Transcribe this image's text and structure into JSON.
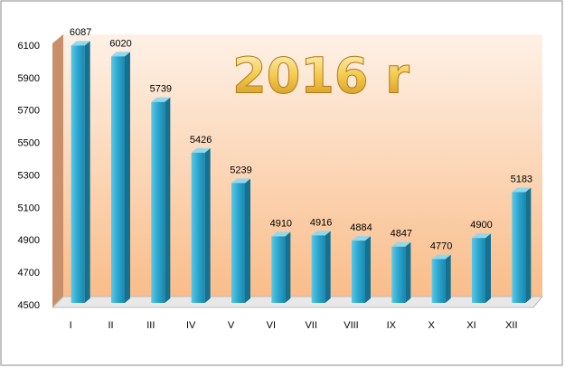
{
  "chart_data": {
    "type": "bar",
    "title": "2016 r",
    "categories": [
      "I",
      "II",
      "III",
      "IV",
      "V",
      "VI",
      "VII",
      "VIII",
      "IX",
      "X",
      "XI",
      "XII"
    ],
    "values": [
      6087,
      6020,
      5739,
      5426,
      5239,
      4910,
      4916,
      4884,
      4847,
      4770,
      4900,
      5183
    ],
    "color": "#2aa6cf",
    "ylim": [
      4500,
      6100
    ],
    "yticks": [
      4500,
      4700,
      4900,
      5100,
      5300,
      5500,
      5700,
      5900,
      6100
    ],
    "grid": false
  }
}
